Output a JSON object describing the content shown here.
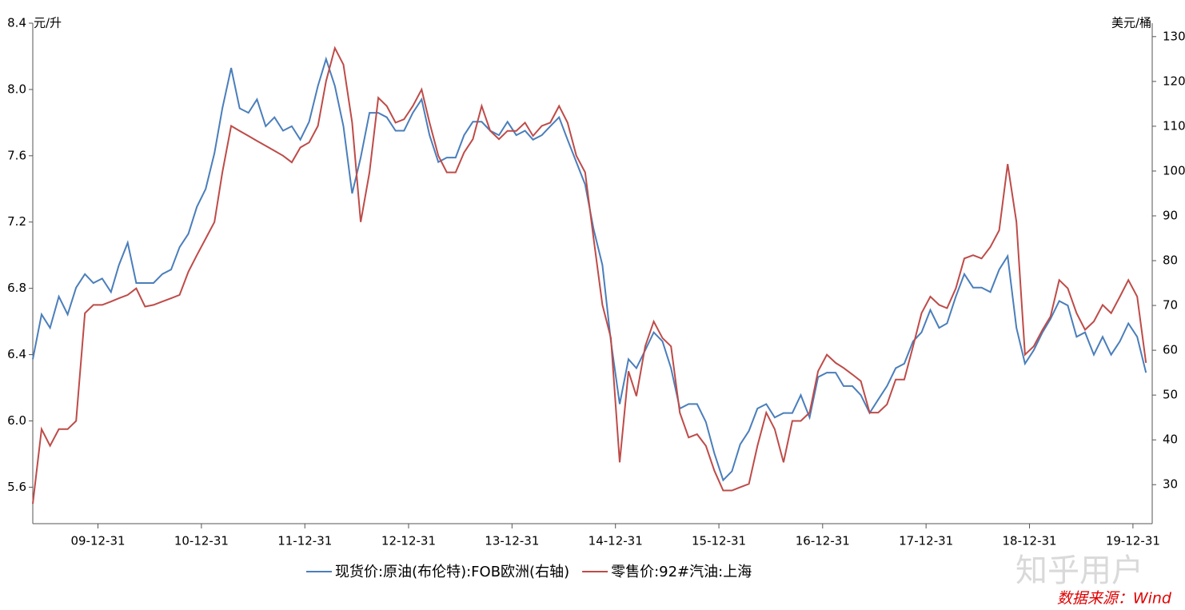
{
  "chart_data": {
    "type": "line",
    "ylabel": "元/升",
    "y2label": "美元/桶",
    "source": "数据来源：Wind",
    "watermark": "知乎用户",
    "xlim": [
      "2009-05-15",
      "2020-03-08"
    ],
    "xticks": [
      {
        "value": "2009-12-31",
        "label": "09-12-31"
      },
      {
        "value": "2010-12-31",
        "label": "10-12-31"
      },
      {
        "value": "2011-12-31",
        "label": "11-12-31"
      },
      {
        "value": "2012-12-31",
        "label": "12-12-31"
      },
      {
        "value": "2013-12-31",
        "label": "13-12-31"
      },
      {
        "value": "2014-12-31",
        "label": "14-12-31"
      },
      {
        "value": "2015-12-31",
        "label": "15-12-31"
      },
      {
        "value": "2016-12-31",
        "label": "16-12-31"
      },
      {
        "value": "2017-12-31",
        "label": "17-12-31"
      },
      {
        "value": "2018-12-31",
        "label": "18-12-31"
      },
      {
        "value": "2019-12-31",
        "label": "19-12-31"
      }
    ],
    "ylim": [
      5.38,
      8.4
    ],
    "yticks": [
      5.6,
      {
        "value": 6,
        "label": "6.0"
      },
      6.4,
      6.8,
      7.2,
      7.6,
      {
        "value": 8,
        "label": "8.0"
      },
      8.4
    ],
    "y2lim": [
      21.3,
      133
    ],
    "y2ticks": [
      30,
      40,
      50,
      60,
      70,
      80,
      90,
      100,
      110,
      120,
      130
    ],
    "x": [
      "2009-05-15",
      "2009-06-15",
      "2009-07-15",
      "2009-08-15",
      "2009-09-15",
      "2009-10-15",
      "2009-11-15",
      "2009-12-15",
      "2010-01-15",
      "2010-02-15",
      "2010-03-15",
      "2010-04-15",
      "2010-05-15",
      "2010-06-15",
      "2010-07-15",
      "2010-08-15",
      "2010-09-15",
      "2010-10-15",
      "2010-11-15",
      "2010-12-15",
      "2011-01-15",
      "2011-02-15",
      "2011-03-15",
      "2011-04-15",
      "2011-05-15",
      "2011-06-15",
      "2011-07-15",
      "2011-08-15",
      "2011-09-15",
      "2011-10-15",
      "2011-11-15",
      "2011-12-15",
      "2012-01-15",
      "2012-02-15",
      "2012-03-15",
      "2012-04-15",
      "2012-05-15",
      "2012-06-15",
      "2012-07-15",
      "2012-08-15",
      "2012-09-15",
      "2012-10-15",
      "2012-11-15",
      "2012-12-15",
      "2013-01-15",
      "2013-02-15",
      "2013-03-15",
      "2013-04-15",
      "2013-05-15",
      "2013-06-15",
      "2013-07-15",
      "2013-08-15",
      "2013-09-15",
      "2013-10-15",
      "2013-11-15",
      "2013-12-15",
      "2014-01-15",
      "2014-02-15",
      "2014-03-15",
      "2014-04-15",
      "2014-05-15",
      "2014-06-15",
      "2014-07-15",
      "2014-08-15",
      "2014-09-15",
      "2014-10-15",
      "2014-11-15",
      "2014-12-15",
      "2015-01-15",
      "2015-02-15",
      "2015-03-15",
      "2015-04-15",
      "2015-05-15",
      "2015-06-15",
      "2015-07-15",
      "2015-08-15",
      "2015-09-15",
      "2015-10-15",
      "2015-11-15",
      "2015-12-15",
      "2016-01-15",
      "2016-02-15",
      "2016-03-15",
      "2016-04-15",
      "2016-05-15",
      "2016-06-15",
      "2016-07-15",
      "2016-08-15",
      "2016-09-15",
      "2016-10-15",
      "2016-11-15",
      "2016-12-15",
      "2017-01-15",
      "2017-02-15",
      "2017-03-15",
      "2017-04-15",
      "2017-05-15",
      "2017-06-15",
      "2017-07-15",
      "2017-08-15",
      "2017-09-15",
      "2017-10-15",
      "2017-11-15",
      "2017-12-15",
      "2018-01-15",
      "2018-02-15",
      "2018-03-15",
      "2018-04-15",
      "2018-05-15",
      "2018-06-15",
      "2018-07-15",
      "2018-08-15",
      "2018-09-15",
      "2018-10-15",
      "2018-11-15",
      "2018-12-15",
      "2019-01-15",
      "2019-02-15",
      "2019-03-15",
      "2019-04-15",
      "2019-05-15",
      "2019-06-15",
      "2019-07-15",
      "2019-08-15",
      "2019-09-15",
      "2019-10-15",
      "2019-11-15",
      "2019-12-15",
      "2020-01-15",
      "2020-02-15"
    ],
    "series": [
      {
        "name": "现货价:原油(布伦特):FOB欧洲(右轴)",
        "color": "#4a7ebb",
        "axis": "y2",
        "values": [
          58,
          68,
          65,
          72,
          68,
          74,
          77,
          75,
          76,
          73,
          79,
          84,
          75,
          75,
          75,
          77,
          78,
          83,
          86,
          92,
          96,
          104,
          114,
          123,
          114,
          113,
          116,
          110,
          112,
          109,
          110,
          107,
          111,
          119,
          125,
          119,
          110,
          95,
          103,
          113,
          113,
          112,
          109,
          109,
          113,
          116,
          108,
          102,
          103,
          103,
          108,
          111,
          111,
          109,
          108,
          111,
          108,
          109,
          107,
          108,
          110,
          112,
          107,
          102,
          97,
          87,
          79,
          62,
          48,
          58,
          56,
          60,
          64,
          62,
          56,
          47,
          48,
          48,
          44,
          37,
          31,
          33,
          39,
          42,
          47,
          48,
          45,
          46,
          46,
          50,
          45,
          54,
          55,
          55,
          52,
          52,
          50,
          46,
          49,
          52,
          56,
          57,
          62,
          64,
          69,
          65,
          66,
          72,
          77,
          74,
          74,
          73,
          78,
          81,
          65,
          57,
          60,
          64,
          67,
          71,
          70,
          63,
          64,
          59,
          63,
          59,
          62,
          66,
          63,
          55
        ]
      },
      {
        "name": "零售价:92#汽油:上海",
        "color": "#be4b48",
        "values": [
          5.5,
          5.95,
          5.85,
          5.95,
          5.95,
          6.0,
          6.65,
          6.7,
          6.7,
          6.72,
          6.74,
          6.76,
          6.8,
          6.69,
          6.7,
          6.72,
          6.74,
          6.76,
          6.9,
          7.0,
          7.1,
          7.2,
          7.5,
          7.78,
          7.75,
          7.72,
          7.69,
          7.66,
          7.63,
          7.6,
          7.56,
          7.65,
          7.68,
          7.78,
          8.05,
          8.25,
          8.15,
          7.8,
          7.2,
          7.5,
          7.95,
          7.9,
          7.8,
          7.82,
          7.9,
          8.0,
          7.8,
          7.6,
          7.5,
          7.5,
          7.62,
          7.7,
          7.9,
          7.75,
          7.7,
          7.75,
          7.75,
          7.8,
          7.72,
          7.78,
          7.8,
          7.9,
          7.8,
          7.6,
          7.5,
          7.1,
          6.7,
          6.5,
          5.75,
          6.3,
          6.15,
          6.45,
          6.6,
          6.5,
          6.45,
          6.05,
          5.9,
          5.92,
          5.85,
          5.7,
          5.58,
          5.58,
          5.6,
          5.62,
          5.85,
          6.05,
          5.95,
          5.75,
          6.0,
          6.0,
          6.05,
          6.3,
          6.4,
          6.35,
          6.32,
          6.28,
          6.24,
          6.05,
          6.05,
          6.1,
          6.25,
          6.25,
          6.45,
          6.65,
          6.75,
          6.7,
          6.68,
          6.8,
          6.98,
          7.0,
          6.98,
          7.05,
          7.15,
          7.55,
          7.2,
          6.4,
          6.45,
          6.55,
          6.63,
          6.85,
          6.8,
          6.65,
          6.55,
          6.6,
          6.7,
          6.65,
          6.75,
          6.85,
          6.75,
          6.35
        ]
      }
    ]
  }
}
